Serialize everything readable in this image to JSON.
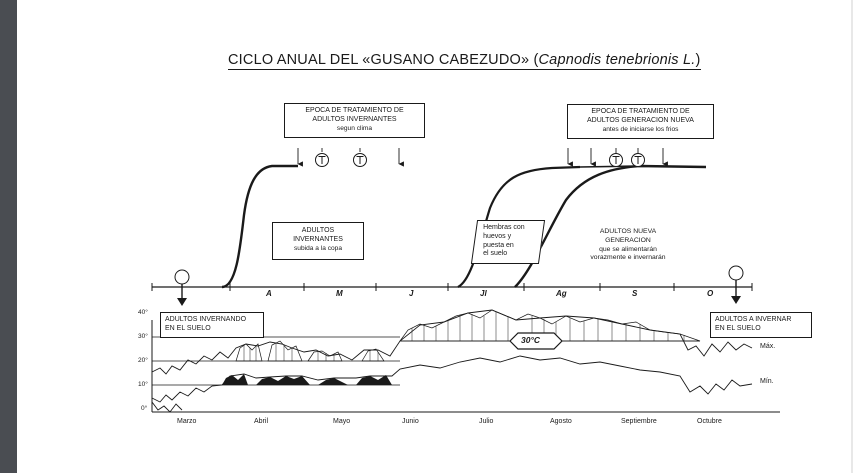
{
  "title": {
    "main": "CICLO ANUAL DEL «GUSANO CABEZUDO»",
    "sci_open": "(",
    "sci_name": "Capnodis tenebrionis L.",
    "sci_close": ")"
  },
  "treatment_box_1": {
    "line1": "EPOCA DE TRATAMIENTO DE",
    "line2": "ADULTOS INVERNANTES",
    "line3": "segun clima"
  },
  "treatment_box_2": {
    "line1": "EPOCA DE TRATAMIENTO DE",
    "line2": "ADULTOS GENERACION NUEVA",
    "line3": "antes de iniciarse los frios"
  },
  "box_adultos_invernantes": {
    "line1": "ADULTOS",
    "line2": "INVERNANTES",
    "line3": "subida a la copa"
  },
  "box_hembras": {
    "line1": "Hembras con",
    "line2": "huevos y",
    "line3": "puesta en",
    "line4": "el suelo"
  },
  "label_nueva_generacion": {
    "line1": "ADULTOS NUEVA",
    "line2": "GENERACION",
    "line3": "que se alimentarán",
    "line4": "vorazmente e invernarán"
  },
  "box_invernando": {
    "line1": "ADULTOS INVERNANDO",
    "line2": "EN EL SUELO"
  },
  "box_a_invernar": {
    "line1": "ADULTOS A INVERNAR",
    "line2": "EN EL SUELO"
  },
  "months_top": [
    "A",
    "M",
    "J",
    "Jl",
    "Ag",
    "S",
    "O"
  ],
  "months_bottom": [
    "Marzo",
    "Abril",
    "Mayo",
    "Junio",
    "Julio",
    "Agosto",
    "Septiembre",
    "Octubre"
  ],
  "y_ticks": [
    "40°",
    "30°",
    "20°",
    "10°",
    "0°"
  ],
  "temp_threshold": "30°C",
  "series_labels": {
    "max": "Máx.",
    "min": "Mín."
  },
  "colors": {
    "ink": "#1a1a1a",
    "background": "#ffffff",
    "sidebar": "#4a4d52"
  }
}
